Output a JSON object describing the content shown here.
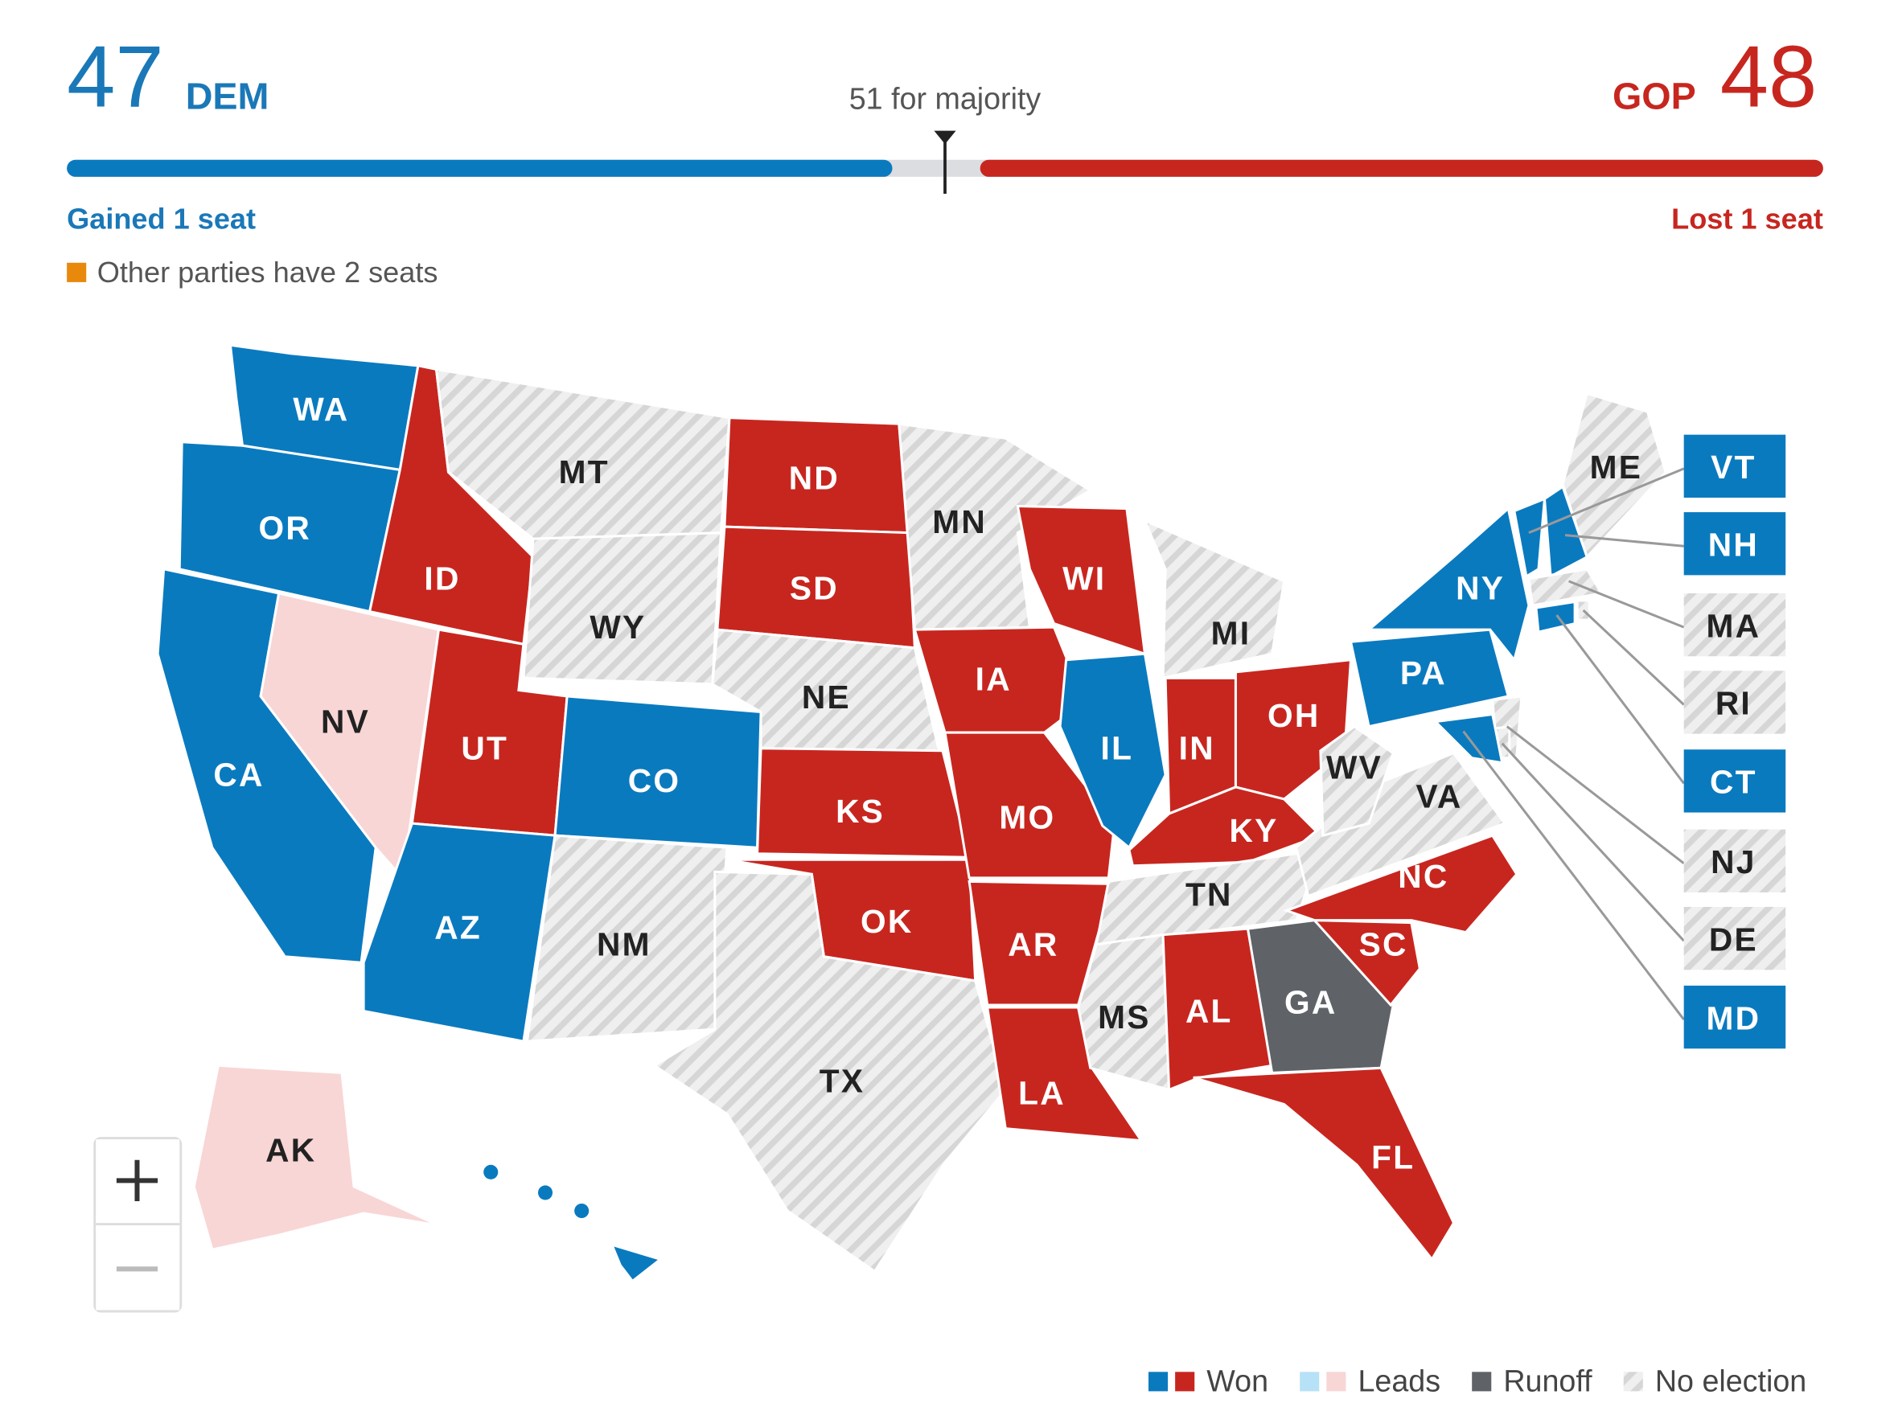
{
  "header": {
    "dem": {
      "seats": 47,
      "party": "DEM",
      "change": "Gained 1 seat"
    },
    "gop": {
      "seats": 48,
      "party": "GOP",
      "change": "Lost 1 seat"
    },
    "majority": {
      "seats": 51,
      "label": "for majority"
    },
    "other_note": "Other parties have 2 seats"
  },
  "map": {
    "states": [
      {
        "abbr": "WA",
        "status": "dem-won"
      },
      {
        "abbr": "OR",
        "status": "dem-won"
      },
      {
        "abbr": "CA",
        "status": "dem-won"
      },
      {
        "abbr": "NV",
        "status": "gop-leads"
      },
      {
        "abbr": "ID",
        "status": "gop-won"
      },
      {
        "abbr": "MT",
        "status": "none"
      },
      {
        "abbr": "WY",
        "status": "none"
      },
      {
        "abbr": "UT",
        "status": "gop-won"
      },
      {
        "abbr": "CO",
        "status": "dem-won"
      },
      {
        "abbr": "AZ",
        "status": "dem-won"
      },
      {
        "abbr": "NM",
        "status": "none"
      },
      {
        "abbr": "ND",
        "status": "gop-won"
      },
      {
        "abbr": "SD",
        "status": "gop-won"
      },
      {
        "abbr": "NE",
        "status": "none"
      },
      {
        "abbr": "KS",
        "status": "gop-won"
      },
      {
        "abbr": "OK",
        "status": "gop-won"
      },
      {
        "abbr": "TX",
        "status": "none"
      },
      {
        "abbr": "MN",
        "status": "none"
      },
      {
        "abbr": "IA",
        "status": "gop-won"
      },
      {
        "abbr": "MO",
        "status": "gop-won"
      },
      {
        "abbr": "AR",
        "status": "gop-won"
      },
      {
        "abbr": "LA",
        "status": "gop-won"
      },
      {
        "abbr": "WI",
        "status": "gop-won"
      },
      {
        "abbr": "IL",
        "status": "dem-won"
      },
      {
        "abbr": "MI",
        "status": "none"
      },
      {
        "abbr": "IN",
        "status": "gop-won"
      },
      {
        "abbr": "OH",
        "status": "gop-won"
      },
      {
        "abbr": "KY",
        "status": "gop-won"
      },
      {
        "abbr": "TN",
        "status": "none"
      },
      {
        "abbr": "MS",
        "status": "none"
      },
      {
        "abbr": "AL",
        "status": "gop-won"
      },
      {
        "abbr": "GA",
        "status": "runoff"
      },
      {
        "abbr": "FL",
        "status": "gop-won"
      },
      {
        "abbr": "SC",
        "status": "gop-won"
      },
      {
        "abbr": "NC",
        "status": "gop-won"
      },
      {
        "abbr": "VA",
        "status": "none"
      },
      {
        "abbr": "WV",
        "status": "none"
      },
      {
        "abbr": "PA",
        "status": "dem-won"
      },
      {
        "abbr": "NY",
        "status": "dem-won"
      },
      {
        "abbr": "ME",
        "status": "none"
      },
      {
        "abbr": "VT",
        "status": "dem-won"
      },
      {
        "abbr": "NH",
        "status": "dem-won"
      },
      {
        "abbr": "MA",
        "status": "none"
      },
      {
        "abbr": "RI",
        "status": "none"
      },
      {
        "abbr": "CT",
        "status": "dem-won"
      },
      {
        "abbr": "NJ",
        "status": "none"
      },
      {
        "abbr": "DE",
        "status": "none"
      },
      {
        "abbr": "MD",
        "status": "dem-won"
      },
      {
        "abbr": "AK",
        "status": "gop-leads"
      },
      {
        "abbr": "HI",
        "status": "dem-won"
      }
    ]
  },
  "legend": [
    {
      "label": "Won",
      "statuses": [
        "dem-won",
        "gop-won"
      ]
    },
    {
      "label": "Leads",
      "statuses": [
        "dem-leads",
        "gop-leads"
      ]
    },
    {
      "label": "Runoff",
      "statuses": [
        "runoff"
      ]
    },
    {
      "label": "No election",
      "statuses": [
        "none"
      ]
    }
  ]
}
